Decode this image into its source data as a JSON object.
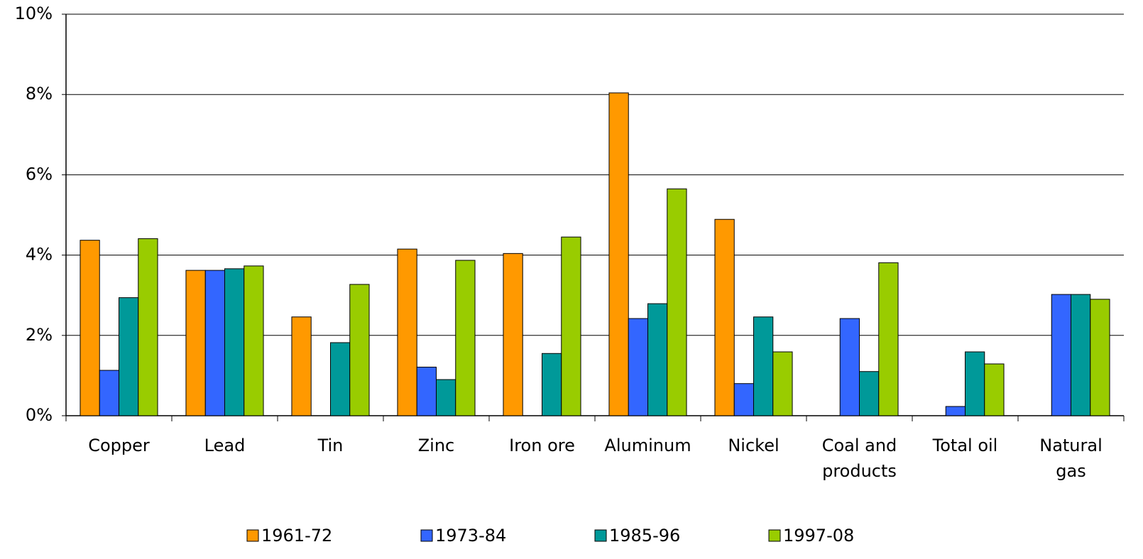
{
  "chart_data": {
    "type": "bar",
    "categories": [
      "Copper",
      "Lead",
      "Tin",
      "Zinc",
      "Iron ore",
      "Aluminum",
      "Nickel",
      "Coal and products",
      "Total oil",
      "Natural gas"
    ],
    "series": [
      {
        "name": "1961-72",
        "color": "#ff9900",
        "values": [
          4.37,
          3.62,
          2.46,
          4.15,
          4.04,
          8.04,
          4.89,
          null,
          null,
          null
        ]
      },
      {
        "name": "1973-84",
        "color": "#3366ff",
        "values": [
          1.13,
          3.62,
          null,
          1.21,
          null,
          2.42,
          0.8,
          2.42,
          0.23,
          3.02
        ]
      },
      {
        "name": "1985-96",
        "color": "#009999",
        "values": [
          2.94,
          3.66,
          1.82,
          0.9,
          1.55,
          2.79,
          2.46,
          1.1,
          1.59,
          3.02
        ]
      },
      {
        "name": "1997-08",
        "color": "#99cc00",
        "values": [
          4.41,
          3.73,
          3.27,
          3.87,
          4.45,
          5.65,
          1.59,
          3.81,
          1.29,
          2.9
        ]
      }
    ],
    "ylim": [
      0,
      10
    ],
    "yticks": [
      {
        "value": 0,
        "label": "0%"
      },
      {
        "value": 2,
        "label": "2%"
      },
      {
        "value": 4,
        "label": "4%"
      },
      {
        "value": 6,
        "label": "6%"
      },
      {
        "value": 8,
        "label": "8%"
      },
      {
        "value": 10,
        "label": "10%"
      }
    ],
    "grid": true,
    "legend": "bottom"
  }
}
